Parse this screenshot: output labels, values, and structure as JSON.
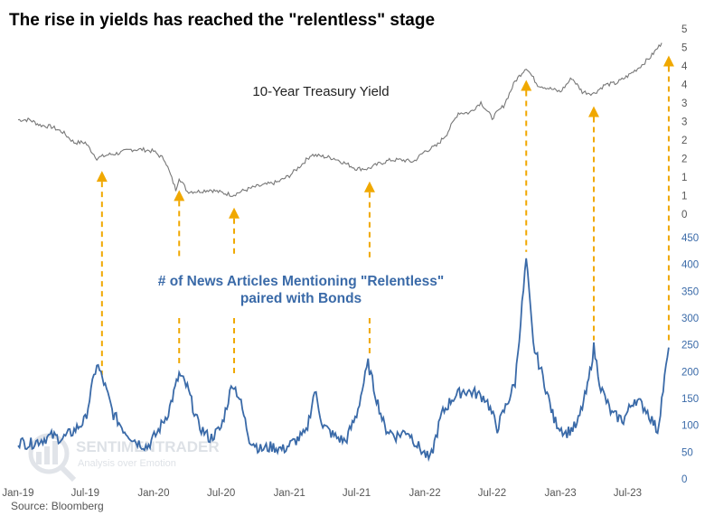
{
  "title": "The rise in yields has reached the \"relentless\" stage",
  "source": "Source: Bloomberg",
  "watermark": {
    "line1": "SENTIMENTRADER",
    "line2": "Analysis over Emotion"
  },
  "colors": {
    "yield": "#777777",
    "articles": "#3a6aa8",
    "arrow": "#f0a800",
    "right_axis_top": "#555555",
    "right_axis_bottom": "#3a6aa8"
  },
  "chart_data": {
    "type": "line",
    "x_ticks": [
      "Jan-19",
      "Jul-19",
      "Jan-20",
      "Jul-20",
      "Jan-21",
      "Jul-21",
      "Jan-22",
      "Jul-22",
      "Jan-23",
      "Jul-23"
    ],
    "yield_axis_ticks": [
      "0",
      "1",
      "1",
      "2",
      "2",
      "3",
      "3",
      "4",
      "4",
      "5",
      "5"
    ],
    "articles_axis_ticks": [
      "0",
      "50",
      "100",
      "150",
      "200",
      "250",
      "300",
      "350",
      "400",
      "450"
    ],
    "articles_ylim": [
      0,
      450
    ],
    "yield_ylim": [
      0,
      5.3
    ],
    "series": [
      {
        "name": "10-Year Treasury Yield",
        "axis": "top",
        "points": [
          [
            "2019-01-01",
            2.7
          ],
          [
            "2019-02-01",
            2.7
          ],
          [
            "2019-03-01",
            2.55
          ],
          [
            "2019-04-01",
            2.5
          ],
          [
            "2019-05-01",
            2.35
          ],
          [
            "2019-06-01",
            2.05
          ],
          [
            "2019-07-01",
            2.05
          ],
          [
            "2019-08-01",
            1.6
          ],
          [
            "2019-09-01",
            1.7
          ],
          [
            "2019-10-01",
            1.75
          ],
          [
            "2019-11-01",
            1.85
          ],
          [
            "2019-12-01",
            1.85
          ],
          [
            "2020-01-01",
            1.8
          ],
          [
            "2020-02-01",
            1.55
          ],
          [
            "2020-03-01",
            0.7
          ],
          [
            "2020-03-10",
            1.05
          ],
          [
            "2020-04-01",
            0.65
          ],
          [
            "2020-05-01",
            0.65
          ],
          [
            "2020-06-01",
            0.7
          ],
          [
            "2020-07-01",
            0.62
          ],
          [
            "2020-08-01",
            0.55
          ],
          [
            "2020-09-01",
            0.68
          ],
          [
            "2020-10-01",
            0.78
          ],
          [
            "2020-11-01",
            0.85
          ],
          [
            "2020-12-01",
            0.92
          ],
          [
            "2021-01-01",
            1.1
          ],
          [
            "2021-02-01",
            1.4
          ],
          [
            "2021-03-01",
            1.7
          ],
          [
            "2021-04-01",
            1.65
          ],
          [
            "2021-05-01",
            1.6
          ],
          [
            "2021-06-01",
            1.45
          ],
          [
            "2021-07-01",
            1.3
          ],
          [
            "2021-08-01",
            1.3
          ],
          [
            "2021-09-01",
            1.45
          ],
          [
            "2021-10-01",
            1.55
          ],
          [
            "2021-11-01",
            1.55
          ],
          [
            "2021-12-01",
            1.5
          ],
          [
            "2022-01-01",
            1.8
          ],
          [
            "2022-02-01",
            1.95
          ],
          [
            "2022-03-01",
            2.3
          ],
          [
            "2022-04-01",
            2.9
          ],
          [
            "2022-05-01",
            2.9
          ],
          [
            "2022-06-01",
            3.2
          ],
          [
            "2022-07-01",
            2.75
          ],
          [
            "2022-08-01",
            3.1
          ],
          [
            "2022-09-01",
            3.8
          ],
          [
            "2022-10-01",
            4.2
          ],
          [
            "2022-11-01",
            3.7
          ],
          [
            "2022-12-01",
            3.6
          ],
          [
            "2023-01-01",
            3.5
          ],
          [
            "2023-02-01",
            3.9
          ],
          [
            "2023-03-01",
            3.5
          ],
          [
            "2023-04-01",
            3.45
          ],
          [
            "2023-05-01",
            3.7
          ],
          [
            "2023-06-01",
            3.75
          ],
          [
            "2023-07-01",
            3.95
          ],
          [
            "2023-08-01",
            4.2
          ],
          [
            "2023-09-01",
            4.5
          ],
          [
            "2023-10-01",
            4.9
          ]
        ]
      },
      {
        "name": "# of News Articles Mentioning \"Relentless\" paired with Bonds",
        "axis": "bottom",
        "points": [
          [
            "2019-01-01",
            70
          ],
          [
            "2019-02-01",
            65
          ],
          [
            "2019-03-01",
            72
          ],
          [
            "2019-04-01",
            80
          ],
          [
            "2019-05-01",
            75
          ],
          [
            "2019-06-01",
            90
          ],
          [
            "2019-07-01",
            110
          ],
          [
            "2019-08-01",
            215
          ],
          [
            "2019-08-20",
            180
          ],
          [
            "2019-09-15",
            120
          ],
          [
            "2019-10-15",
            90
          ],
          [
            "2019-11-15",
            70
          ],
          [
            "2019-12-15",
            60
          ],
          [
            "2020-01-10",
            85
          ],
          [
            "2020-02-10",
            125
          ],
          [
            "2020-03-10",
            195
          ],
          [
            "2020-04-01",
            170
          ],
          [
            "2020-05-01",
            100
          ],
          [
            "2020-06-01",
            75
          ],
          [
            "2020-07-01",
            95
          ],
          [
            "2020-08-01",
            180
          ],
          [
            "2020-08-20",
            150
          ],
          [
            "2020-09-15",
            75
          ],
          [
            "2020-10-15",
            55
          ],
          [
            "2020-11-15",
            60
          ],
          [
            "2020-12-15",
            55
          ],
          [
            "2021-01-15",
            70
          ],
          [
            "2021-02-15",
            85
          ],
          [
            "2021-03-10",
            165
          ],
          [
            "2021-04-01",
            100
          ],
          [
            "2021-05-01",
            80
          ],
          [
            "2021-06-01",
            70
          ],
          [
            "2021-07-01",
            120
          ],
          [
            "2021-08-01",
            215
          ],
          [
            "2021-08-20",
            160
          ],
          [
            "2021-09-15",
            95
          ],
          [
            "2021-10-15",
            80
          ],
          [
            "2021-11-15",
            90
          ],
          [
            "2021-12-15",
            60
          ],
          [
            "2022-01-15",
            35
          ],
          [
            "2022-02-15",
            120
          ],
          [
            "2022-03-15",
            150
          ],
          [
            "2022-04-15",
            165
          ],
          [
            "2022-05-15",
            160
          ],
          [
            "2022-06-15",
            150
          ],
          [
            "2022-07-15",
            95
          ],
          [
            "2022-08-10",
            140
          ],
          [
            "2022-09-01",
            180
          ],
          [
            "2022-10-01",
            410
          ],
          [
            "2022-10-20",
            250
          ],
          [
            "2022-11-15",
            190
          ],
          [
            "2022-12-15",
            110
          ],
          [
            "2023-01-15",
            85
          ],
          [
            "2023-02-15",
            100
          ],
          [
            "2023-03-15",
            170
          ],
          [
            "2023-04-01",
            245
          ],
          [
            "2023-04-20",
            170
          ],
          [
            "2023-05-20",
            120
          ],
          [
            "2023-06-20",
            110
          ],
          [
            "2023-07-20",
            150
          ],
          [
            "2023-08-20",
            130
          ],
          [
            "2023-09-20",
            90
          ],
          [
            "2023-10-20",
            245
          ]
        ]
      }
    ],
    "annotations": [
      "10-Year Treasury Yield",
      "# of News Articles Mentioning \"Relentless\"",
      "paired with Bonds"
    ],
    "event_arrows": [
      "2019-08-15",
      "2020-03-10",
      "2020-08-05",
      "2021-08-05",
      "2022-10-01",
      "2023-04-01",
      "2023-10-20"
    ]
  }
}
